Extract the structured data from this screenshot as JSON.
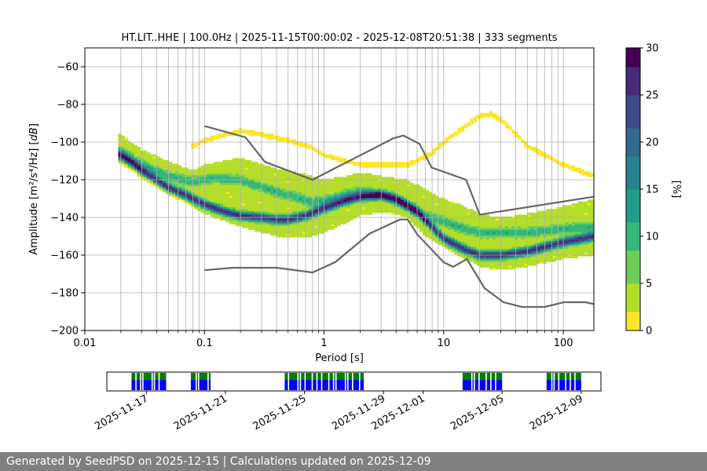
{
  "footer": {
    "text": "Generated by SeedPSD on 2025-12-15 | Calculations updated on 2025-12-09"
  },
  "colors": {
    "viridis": [
      "#fde725",
      "#b5de2b",
      "#6ece58",
      "#35b779",
      "#1f9e89",
      "#26828e",
      "#31688e",
      "#3e4989",
      "#482878",
      "#440154"
    ],
    "model_lines": "#666666",
    "grid": "#b0b0b0",
    "timeline_green": "#008000",
    "timeline_blue": "#0000ff"
  },
  "chart_data": [
    {
      "type": "heatmap",
      "title": "HT.LIT..HHE | 100.0Hz | 2025-11-15T00:00:02 - 2025-12-08T20:51:38 | 333 segments",
      "xlabel": "Period [s]",
      "ylabel": "Amplitude [m²/s⁴/Hz] [dB]",
      "xscale": "log",
      "xlim": [
        0.01,
        180
      ],
      "ylim": [
        -200,
        -50
      ],
      "x_ticks": [
        0.01,
        0.1,
        1,
        10,
        100
      ],
      "x_tick_labels": [
        "0.01",
        "0.1",
        "1",
        "10",
        "100"
      ],
      "y_ticks": [
        -200,
        -180,
        -160,
        -140,
        -120,
        -100,
        -80,
        -60
      ],
      "y_tick_labels": [
        "−200",
        "−180",
        "−160",
        "−140",
        "−120",
        "−100",
        "−80",
        "−60"
      ],
      "grid": true,
      "colorbar": {
        "label": "[%]",
        "range": [
          0,
          30
        ],
        "ticks": [
          0,
          5,
          10,
          15,
          20,
          25,
          30
        ]
      },
      "mode_curve": [
        [
          0.02,
          -107
        ],
        [
          0.025,
          -111
        ],
        [
          0.03,
          -115
        ],
        [
          0.04,
          -120
        ],
        [
          0.05,
          -124
        ],
        [
          0.07,
          -128
        ],
        [
          0.1,
          -133
        ],
        [
          0.15,
          -137
        ],
        [
          0.2,
          -139
        ],
        [
          0.3,
          -140
        ],
        [
          0.4,
          -141
        ],
        [
          0.5,
          -141
        ],
        [
          0.7,
          -139
        ],
        [
          1,
          -135
        ],
        [
          1.5,
          -131
        ],
        [
          2,
          -129
        ],
        [
          3,
          -128
        ],
        [
          4,
          -130
        ],
        [
          5,
          -134
        ],
        [
          6,
          -137
        ],
        [
          8,
          -145
        ],
        [
          10,
          -151
        ],
        [
          15,
          -157
        ],
        [
          20,
          -160
        ],
        [
          30,
          -160
        ],
        [
          50,
          -158
        ],
        [
          100,
          -153
        ],
        [
          180,
          -150
        ]
      ],
      "secondary_curve": [
        [
          0.02,
          -105
        ],
        [
          0.03,
          -112
        ],
        [
          0.05,
          -118
        ],
        [
          0.08,
          -121
        ],
        [
          0.12,
          -119
        ],
        [
          0.2,
          -120
        ],
        [
          0.3,
          -124
        ],
        [
          0.5,
          -128
        ],
        [
          0.8,
          -132
        ],
        [
          1,
          -131
        ],
        [
          1.5,
          -128
        ],
        [
          2,
          -126
        ],
        [
          3,
          -128
        ],
        [
          5,
          -133
        ],
        [
          7,
          -139
        ],
        [
          10,
          -142
        ],
        [
          15,
          -146
        ],
        [
          20,
          -148
        ],
        [
          50,
          -148
        ],
        [
          100,
          -146
        ],
        [
          180,
          -145
        ]
      ],
      "spread_upper": [
        [
          0.02,
          -96
        ],
        [
          0.03,
          -104
        ],
        [
          0.05,
          -110
        ],
        [
          0.08,
          -115
        ],
        [
          0.1,
          -112
        ],
        [
          0.2,
          -108
        ],
        [
          0.4,
          -114
        ],
        [
          0.7,
          -117
        ],
        [
          1,
          -120
        ],
        [
          1.5,
          -118
        ],
        [
          2,
          -116
        ],
        [
          3,
          -118
        ],
        [
          5,
          -120
        ],
        [
          7,
          -125
        ],
        [
          10,
          -130
        ],
        [
          15,
          -134
        ],
        [
          20,
          -138
        ],
        [
          30,
          -140
        ],
        [
          50,
          -138
        ],
        [
          100,
          -134
        ],
        [
          180,
          -130
        ]
      ],
      "spread_lower": [
        [
          0.02,
          -110
        ],
        [
          0.03,
          -118
        ],
        [
          0.05,
          -126
        ],
        [
          0.08,
          -134
        ],
        [
          0.1,
          -138
        ],
        [
          0.2,
          -145
        ],
        [
          0.4,
          -150
        ],
        [
          0.7,
          -151
        ],
        [
          1,
          -148
        ],
        [
          1.5,
          -143
        ],
        [
          2,
          -139
        ],
        [
          3,
          -137
        ],
        [
          5,
          -140
        ],
        [
          7,
          -150
        ],
        [
          10,
          -156
        ],
        [
          15,
          -162
        ],
        [
          20,
          -166
        ],
        [
          30,
          -168
        ],
        [
          50,
          -166
        ],
        [
          100,
          -162
        ],
        [
          180,
          -160
        ]
      ],
      "sparse_upper": [
        [
          0.08,
          -102
        ],
        [
          0.1,
          -99
        ],
        [
          0.15,
          -96
        ],
        [
          0.2,
          -94
        ],
        [
          0.3,
          -96
        ],
        [
          0.5,
          -99
        ],
        [
          0.8,
          -103
        ],
        [
          1,
          -107
        ],
        [
          2,
          -112
        ],
        [
          5,
          -112
        ],
        [
          8,
          -106
        ],
        [
          10,
          -100
        ],
        [
          15,
          -92
        ],
        [
          20,
          -86
        ],
        [
          25,
          -85
        ],
        [
          30,
          -88
        ],
        [
          50,
          -102
        ],
        [
          100,
          -112
        ],
        [
          180,
          -118
        ]
      ],
      "nhnm": [
        [
          0.1,
          -91.5
        ],
        [
          0.22,
          -97.4
        ],
        [
          0.32,
          -110.5
        ],
        [
          0.8,
          -120
        ],
        [
          3.8,
          -98
        ],
        [
          4.6,
          -96.5
        ],
        [
          6.3,
          -101
        ],
        [
          7.9,
          -113.5
        ],
        [
          15.4,
          -120
        ],
        [
          20,
          -138.5
        ],
        [
          180,
          -129
        ]
      ],
      "nlnm": [
        [
          0.1,
          -168
        ],
        [
          0.17,
          -166.7
        ],
        [
          0.4,
          -166.7
        ],
        [
          0.8,
          -169.2
        ],
        [
          1.24,
          -163.7
        ],
        [
          2.4,
          -148.6
        ],
        [
          4.3,
          -141.1
        ],
        [
          5,
          -141.1
        ],
        [
          6,
          -149
        ],
        [
          10,
          -163.8
        ],
        [
          12,
          -166.2
        ],
        [
          15.6,
          -162.1
        ],
        [
          21.9,
          -177.5
        ],
        [
          31.6,
          -185
        ],
        [
          45,
          -187.5
        ],
        [
          70,
          -187.5
        ],
        [
          101,
          -185
        ],
        [
          154,
          -185
        ],
        [
          180,
          -186
        ]
      ],
      "timeline": {
        "x_tick_labels": [
          "2025-11-17",
          "2025-11-21",
          "2025-11-25",
          "2025-11-29",
          "2025-12-01",
          "2025-12-05",
          "2025-12-09"
        ],
        "x_ticks": [
          "2025-11-17",
          "2025-11-21",
          "2025-11-25",
          "2025-11-29",
          "2025-12-01",
          "2025-12-05",
          "2025-12-09"
        ],
        "range": [
          "2025-11-15",
          "2025-12-10"
        ],
        "segments": [
          {
            "start": "2025-11-16T06",
            "end": "2025-11-18T00"
          },
          {
            "start": "2025-11-19T06",
            "end": "2025-11-20T06"
          },
          {
            "start": "2025-11-24T00",
            "end": "2025-11-28T00"
          },
          {
            "start": "2025-12-03T00",
            "end": "2025-12-05T00"
          },
          {
            "start": "2025-12-07T06",
            "end": "2025-12-09T00"
          }
        ]
      }
    }
  ]
}
